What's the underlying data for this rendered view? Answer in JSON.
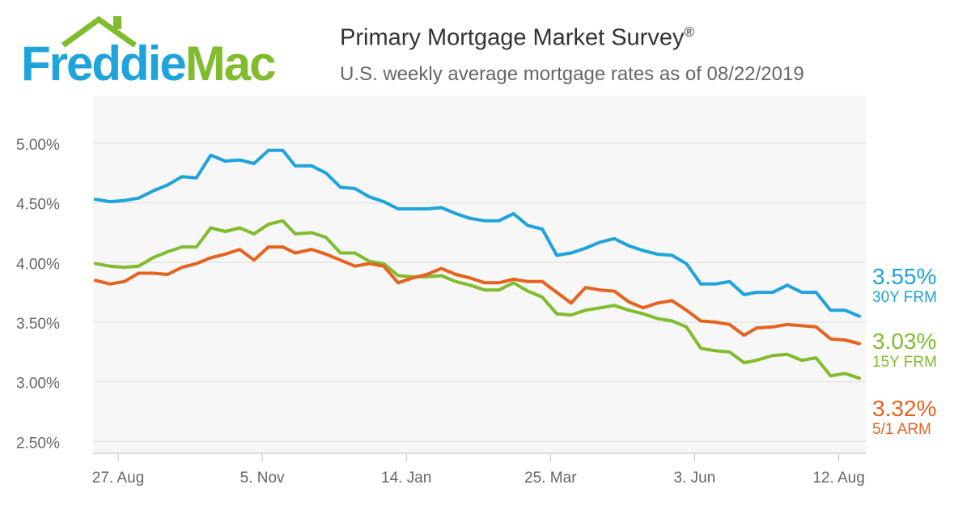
{
  "logo": {
    "word1": "Freddie",
    "word2": "Mac",
    "colors": {
      "blue": "#1ea3dc",
      "green": "#80bc2e"
    }
  },
  "chart_data": {
    "type": "line",
    "title": "Primary Mortgage Market Survey",
    "title_mark": "®",
    "subtitle": "U.S. weekly average mortgage rates as of 08/22/2019",
    "ylim": [
      2.4,
      5.4
    ],
    "yticks": [
      2.5,
      3.0,
      3.5,
      4.0,
      4.5,
      5.0
    ],
    "ytick_labels": [
      "2.50%",
      "3.00%",
      "3.50%",
      "4.00%",
      "4.50%",
      "5.00%"
    ],
    "x_start": "2018-08-16",
    "x_end": "2019-08-22",
    "xticks": [
      {
        "label": "27. Aug",
        "x": "2018-08-27"
      },
      {
        "label": "5. Nov",
        "x": "2018-11-05"
      },
      {
        "label": "14. Jan",
        "x": "2019-01-14"
      },
      {
        "label": "25. Mar",
        "x": "2019-03-25"
      },
      {
        "label": "3. Jun",
        "x": "2019-06-03"
      },
      {
        "label": "12. Aug",
        "x": "2019-08-12"
      }
    ],
    "grid": true,
    "x": [
      "2018-08-16",
      "2018-08-23",
      "2018-08-30",
      "2018-09-06",
      "2018-09-13",
      "2018-09-20",
      "2018-09-27",
      "2018-10-04",
      "2018-10-11",
      "2018-10-18",
      "2018-10-25",
      "2018-11-01",
      "2018-11-08",
      "2018-11-15",
      "2018-11-21",
      "2018-11-29",
      "2018-12-06",
      "2018-12-13",
      "2018-12-20",
      "2018-12-27",
      "2019-01-03",
      "2019-01-10",
      "2019-01-17",
      "2019-01-24",
      "2019-01-31",
      "2019-02-07",
      "2019-02-14",
      "2019-02-21",
      "2019-02-28",
      "2019-03-07",
      "2019-03-14",
      "2019-03-21",
      "2019-03-28",
      "2019-04-04",
      "2019-04-11",
      "2019-04-18",
      "2019-04-25",
      "2019-05-02",
      "2019-05-09",
      "2019-05-16",
      "2019-05-23",
      "2019-05-30",
      "2019-06-06",
      "2019-06-13",
      "2019-06-20",
      "2019-06-27",
      "2019-07-03",
      "2019-07-11",
      "2019-07-18",
      "2019-07-25",
      "2019-08-01",
      "2019-08-08",
      "2019-08-15",
      "2019-08-22"
    ],
    "series": [
      {
        "name": "30Y FRM",
        "color": "#1ea3dc",
        "latest_label": "3.55%",
        "values": [
          4.53,
          4.51,
          4.52,
          4.54,
          4.6,
          4.65,
          4.72,
          4.71,
          4.9,
          4.85,
          4.86,
          4.83,
          4.94,
          4.94,
          4.81,
          4.81,
          4.75,
          4.63,
          4.62,
          4.55,
          4.51,
          4.45,
          4.45,
          4.45,
          4.46,
          4.41,
          4.37,
          4.35,
          4.35,
          4.41,
          4.31,
          4.28,
          4.06,
          4.08,
          4.12,
          4.17,
          4.2,
          4.14,
          4.1,
          4.07,
          4.06,
          3.99,
          3.82,
          3.82,
          3.84,
          3.73,
          3.75,
          3.75,
          3.81,
          3.75,
          3.75,
          3.6,
          3.6,
          3.55
        ]
      },
      {
        "name": "15Y FRM",
        "color": "#80bc2e",
        "latest_label": "3.03%",
        "values": [
          3.99,
          3.97,
          3.96,
          3.97,
          4.04,
          4.09,
          4.13,
          4.13,
          4.29,
          4.26,
          4.29,
          4.24,
          4.32,
          4.35,
          4.24,
          4.25,
          4.21,
          4.08,
          4.08,
          4.01,
          3.99,
          3.89,
          3.88,
          3.88,
          3.89,
          3.84,
          3.81,
          3.77,
          3.77,
          3.83,
          3.76,
          3.71,
          3.57,
          3.56,
          3.6,
          3.62,
          3.64,
          3.6,
          3.57,
          3.53,
          3.51,
          3.46,
          3.28,
          3.26,
          3.25,
          3.16,
          3.18,
          3.22,
          3.23,
          3.18,
          3.2,
          3.05,
          3.07,
          3.03
        ]
      },
      {
        "name": "5/1 ARM",
        "color": "#e5631e",
        "latest_label": "3.32%",
        "values": [
          3.85,
          3.82,
          3.84,
          3.91,
          3.91,
          3.9,
          3.96,
          3.99,
          4.04,
          4.07,
          4.11,
          4.02,
          4.13,
          4.13,
          4.08,
          4.11,
          4.07,
          4.02,
          3.97,
          3.99,
          3.97,
          3.83,
          3.87,
          3.9,
          3.95,
          3.9,
          3.87,
          3.83,
          3.83,
          3.86,
          3.84,
          3.84,
          3.75,
          3.66,
          3.79,
          3.77,
          3.76,
          3.67,
          3.62,
          3.66,
          3.68,
          3.6,
          3.51,
          3.5,
          3.48,
          3.39,
          3.45,
          3.46,
          3.48,
          3.47,
          3.46,
          3.36,
          3.35,
          3.32
        ]
      }
    ]
  }
}
